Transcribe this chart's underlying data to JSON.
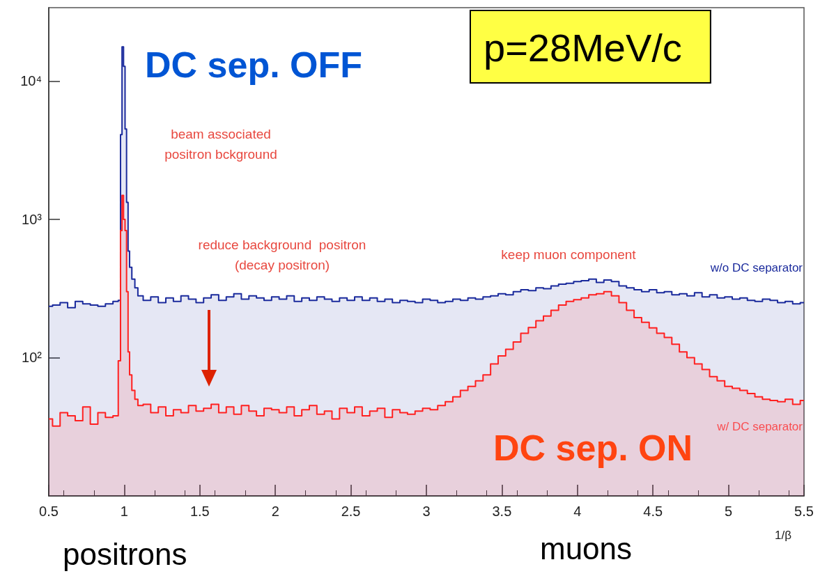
{
  "chart_data": {
    "type": "area",
    "xlabel": "1/β",
    "x": [
      0.5,
      0.55,
      0.6,
      0.65,
      0.7,
      0.75,
      0.8,
      0.85,
      0.9,
      0.95,
      0.97,
      0.98,
      0.99,
      1.0,
      1.01,
      1.02,
      1.03,
      1.04,
      1.06,
      1.08,
      1.1,
      1.15,
      1.2,
      1.25,
      1.3,
      1.35,
      1.4,
      1.45,
      1.5,
      1.55,
      1.6,
      1.65,
      1.7,
      1.75,
      1.8,
      1.85,
      1.9,
      1.95,
      2.0,
      2.05,
      2.1,
      2.15,
      2.2,
      2.25,
      2.3,
      2.35,
      2.4,
      2.45,
      2.5,
      2.55,
      2.6,
      2.65,
      2.7,
      2.75,
      2.8,
      2.85,
      2.9,
      2.95,
      3.0,
      3.05,
      3.1,
      3.15,
      3.2,
      3.25,
      3.3,
      3.35,
      3.4,
      3.45,
      3.5,
      3.55,
      3.6,
      3.65,
      3.7,
      3.75,
      3.8,
      3.85,
      3.9,
      3.95,
      4.0,
      4.05,
      4.1,
      4.15,
      4.2,
      4.25,
      4.3,
      4.35,
      4.4,
      4.45,
      4.5,
      4.55,
      4.6,
      4.65,
      4.7,
      4.75,
      4.8,
      4.85,
      4.9,
      4.95,
      5.0,
      5.05,
      5.1,
      5.15,
      5.2,
      5.25,
      5.3,
      5.35,
      5.4,
      5.45,
      5.5
    ],
    "series": [
      {
        "name": "w/o DC separator",
        "color": "#1a2a9c",
        "values": [
          235,
          240,
          250,
          230,
          255,
          245,
          240,
          235,
          245,
          255,
          260,
          4100,
          17700,
          12800,
          4500,
          1330,
          590,
          450,
          370,
          320,
          280,
          260,
          275,
          250,
          270,
          255,
          280,
          265,
          250,
          270,
          285,
          260,
          275,
          290,
          265,
          280,
          270,
          260,
          275,
          265,
          280,
          255,
          270,
          260,
          275,
          265,
          255,
          270,
          260,
          275,
          260,
          270,
          255,
          265,
          250,
          260,
          255,
          250,
          265,
          260,
          250,
          255,
          265,
          260,
          270,
          265,
          275,
          280,
          290,
          285,
          300,
          310,
          305,
          320,
          315,
          330,
          340,
          345,
          355,
          360,
          370,
          350,
          365,
          355,
          330,
          320,
          310,
          300,
          310,
          295,
          300,
          285,
          290,
          280,
          295,
          275,
          285,
          270,
          275,
          265,
          270,
          260,
          255,
          265,
          260,
          250,
          255,
          245,
          250
        ]
      },
      {
        "name": "w/ DC separator",
        "color": "#ff2020",
        "values": [
          36,
          32,
          40,
          38,
          35,
          44,
          33,
          40,
          37,
          38,
          95,
          830,
          1490,
          1000,
          830,
          300,
          110,
          75,
          58,
          50,
          45,
          46,
          40,
          44,
          38,
          42,
          40,
          45,
          41,
          43,
          46,
          40,
          44,
          39,
          45,
          41,
          38,
          43,
          42,
          40,
          44,
          38,
          42,
          45,
          39,
          41,
          36,
          43,
          40,
          44,
          38,
          41,
          43,
          37,
          42,
          40,
          39,
          41,
          43,
          42,
          45,
          48,
          52,
          58,
          62,
          68,
          75,
          90,
          103,
          115,
          130,
          150,
          165,
          185,
          200,
          220,
          240,
          255,
          263,
          270,
          285,
          290,
          300,
          280,
          250,
          220,
          195,
          180,
          164,
          150,
          140,
          125,
          110,
          100,
          90,
          82,
          73,
          68,
          62,
          60,
          58,
          55,
          52,
          50,
          49,
          48,
          50,
          46,
          49
        ]
      }
    ],
    "xlim": [
      0.5,
      5.5
    ],
    "xticks": [
      0.5,
      1,
      1.5,
      2,
      2.5,
      3,
      3.5,
      4,
      4.5,
      5,
      5.5
    ],
    "ylim": [
      10,
      34000
    ],
    "yticks": [
      {
        "value": 100,
        "label": "10²"
      },
      {
        "value": 1000,
        "label": "10³"
      },
      {
        "value": 10000,
        "label": "10⁴"
      }
    ],
    "log": "y",
    "grid": false,
    "legend": false,
    "annotations": [
      "DC sep. OFF",
      "p=28MeV/c",
      "beam associated\npositron bckground",
      "reduce background  positron\n(decay positron)",
      "keep muon component",
      "DC sep. ON",
      "positrons",
      "muons"
    ]
  }
}
